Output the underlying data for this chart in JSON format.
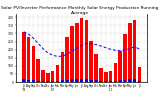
{
  "title": "Solar PV/Inverter Performance Monthly Solar Energy Production Running Average",
  "months": [
    "Jul\n'09",
    "Aug",
    "Sep",
    "Oct",
    "Nov",
    "Dec",
    "Jan\n'10",
    "Feb",
    "Mar",
    "Apr",
    "May",
    "Jun",
    "Jul",
    "Aug",
    "Sep",
    "Oct",
    "Nov",
    "Dec",
    "Jan\n'11",
    "Feb",
    "Mar",
    "Apr",
    "May",
    "Jun",
    "Jul"
  ],
  "monthly_values": [
    310,
    280,
    220,
    140,
    75,
    55,
    70,
    105,
    185,
    275,
    345,
    365,
    395,
    380,
    255,
    170,
    85,
    60,
    65,
    115,
    190,
    295,
    365,
    385,
    95
  ],
  "running_avg": [
    310,
    295,
    270,
    238,
    206,
    180,
    165,
    158,
    160,
    172,
    191,
    208,
    226,
    238,
    236,
    231,
    222,
    212,
    202,
    196,
    193,
    198,
    207,
    217,
    204
  ],
  "bar_color": "#ff0000",
  "avg_line_color": "#0000ff",
  "bg_color": "#ffffff",
  "grid_color": "#888888",
  "ylim": [
    0,
    420
  ],
  "yticks": [
    0,
    50,
    100,
    150,
    200,
    250,
    300,
    350,
    400
  ],
  "title_fontsize": 3.2,
  "small_bars_values": [
    18,
    15,
    12,
    9,
    6,
    5,
    6,
    8,
    11,
    15,
    18,
    19,
    21,
    20,
    14,
    10,
    6,
    5,
    6,
    8,
    11,
    15,
    18,
    20,
    7
  ]
}
